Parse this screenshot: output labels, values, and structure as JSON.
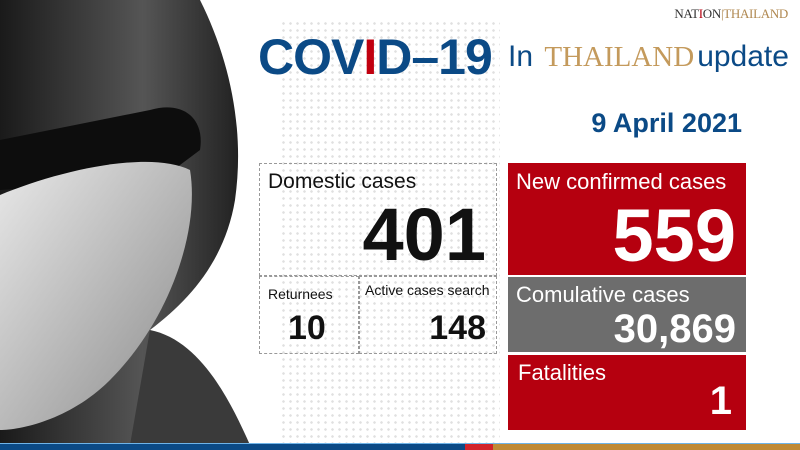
{
  "logo": {
    "name": "THE NATION THAILAND"
  },
  "header": {
    "title_part1": "COV",
    "title_red": "I",
    "title_part2": "D–19",
    "subtitle_in": "In",
    "subtitle_country": "THAILAND",
    "subtitle_update": "update",
    "date": "9 April 2021"
  },
  "stats": {
    "domestic": {
      "label": "Domestic cases",
      "value": "401"
    },
    "returnees": {
      "label": "Returnees",
      "value": "10"
    },
    "active_search": {
      "label": "Active cases search",
      "value": "148"
    },
    "new_confirmed": {
      "label": "New confirmed cases",
      "value": "559"
    },
    "cumulative": {
      "label": "Comulative cases",
      "value": "30,869"
    },
    "fatalities": {
      "label": "Fatalities",
      "value": "1"
    }
  },
  "colors": {
    "blue": "#0b4a86",
    "red": "#b5000f",
    "gray": "#6d6d6d",
    "gold": "#c49a5c"
  }
}
